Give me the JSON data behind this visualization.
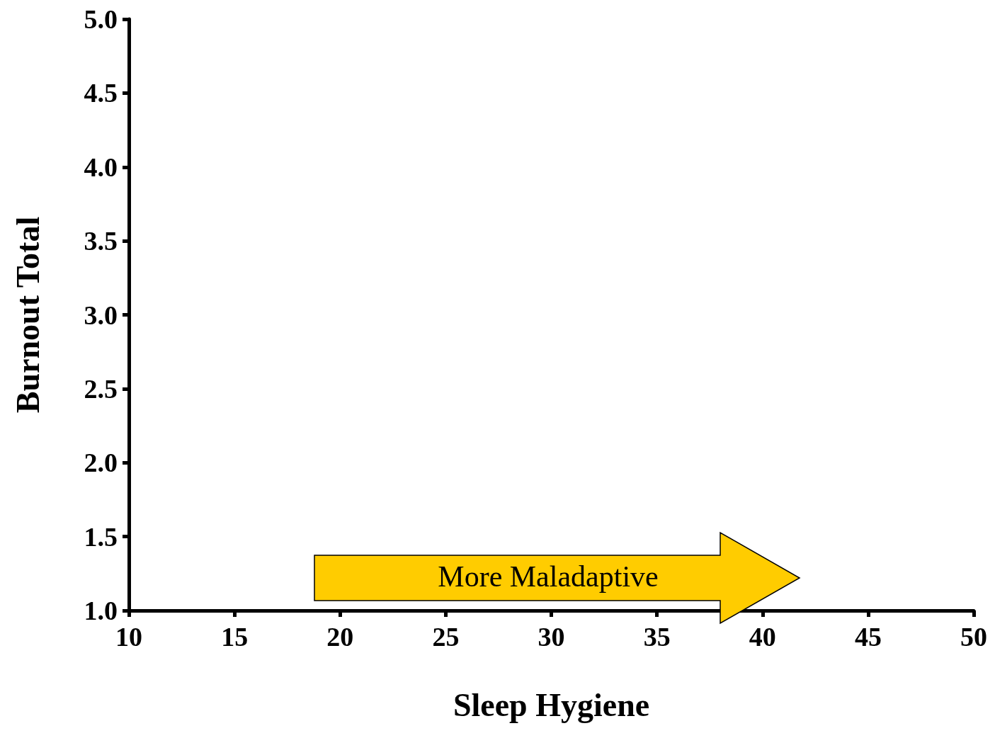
{
  "chart_data": {
    "type": "scatter",
    "xlabel": "Sleep Hygiene",
    "ylabel": "Burnout Total",
    "xlim": [
      10,
      50
    ],
    "xticks": [
      10,
      15,
      20,
      25,
      30,
      35,
      40,
      45,
      50
    ],
    "ylim": [
      1,
      5
    ],
    "yticks": [
      {
        "value": 1,
        "label": "1.0"
      },
      {
        "value": 1.5,
        "label": "1.5"
      },
      {
        "value": 2,
        "label": "2.0"
      },
      {
        "value": 2.5,
        "label": "2.5"
      },
      {
        "value": 3,
        "label": "3.0"
      },
      {
        "value": 3.5,
        "label": "3.5"
      },
      {
        "value": 4,
        "label": "4.0"
      },
      {
        "value": 4.5,
        "label": "4.5"
      },
      {
        "value": 5,
        "label": "5.0"
      }
    ],
    "grid": false,
    "annotations": [
      "More Maladaptive"
    ]
  }
}
